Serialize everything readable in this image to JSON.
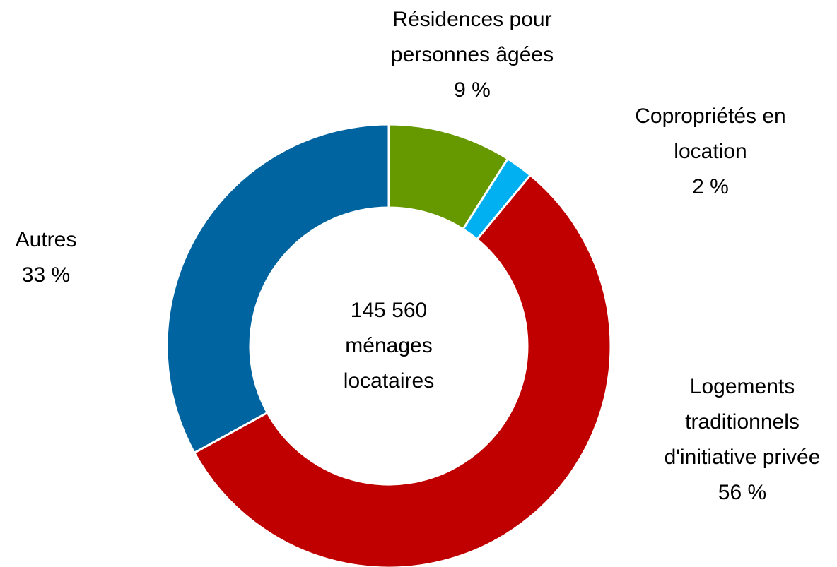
{
  "chart_data": {
    "type": "donut",
    "categories": [
      "Résidences pour personnes âgées",
      "Copropriétés en location",
      "Logements traditionnels d'initiative privée",
      "Autres"
    ],
    "values": [
      9,
      2,
      56,
      33
    ],
    "value_labels": [
      "9 %",
      "2 %",
      "56 %",
      "33 %"
    ],
    "colors": [
      "#669900",
      "#00b0f0",
      "#c00000",
      "#0064a0"
    ],
    "center_label": "145 560 ménages locataires"
  }
}
